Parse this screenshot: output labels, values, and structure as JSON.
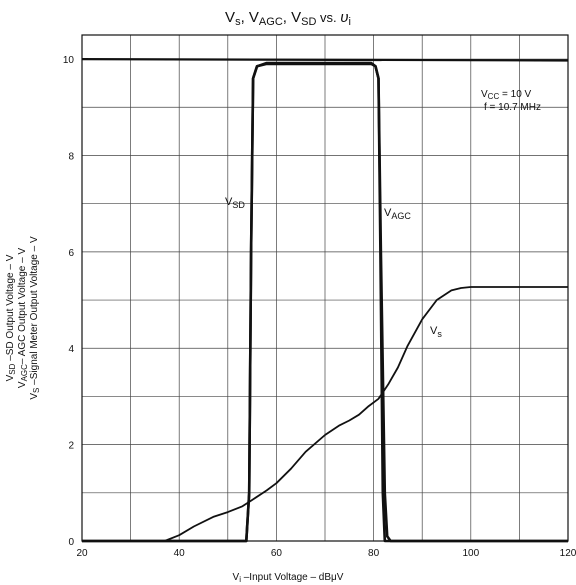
{
  "chart_data": {
    "type": "line",
    "title_parts": {
      "vs": "V",
      "vs_sub": "s",
      "sep1": ",  ",
      "vagc": "V",
      "vagc_sub": "AGC",
      "sep2": ",  ",
      "vsd": "V",
      "vsd_sub": "SD",
      "tail": "  vs. ",
      "vi": "υ",
      "vi_sub": "i"
    },
    "xlabel_parts": {
      "v": "V",
      "sub": "i",
      "rest": " –Input  Voltage – dBμV"
    },
    "ylabel_lines": [
      {
        "v": "V",
        "sub": "SD",
        "rest": " –SD  Output  Voltage – V"
      },
      {
        "v": "V",
        "sub": "AGC",
        "rest": "– AGC  Output  Voltage – V"
      },
      {
        "v": "V",
        "sub": "S",
        "rest": " –Signal  Meter  Output  Voltage – V"
      }
    ],
    "xlim": [
      20,
      120
    ],
    "ylim": [
      0,
      10.5
    ],
    "x_ticks": [
      20,
      40,
      60,
      80,
      100,
      120
    ],
    "y_ticks": [
      0,
      2,
      4,
      6,
      8,
      10
    ],
    "grid": true,
    "annotations": [
      {
        "v": "V",
        "sub": "CC",
        "rest": " = 10  V"
      },
      {
        "v": "",
        "sub": "",
        "rest": "f = 10.7  MHz"
      }
    ],
    "series": [
      {
        "name": "VCC",
        "x": [
          20,
          120
        ],
        "y": [
          10.0,
          9.97
        ]
      },
      {
        "name": "VSD",
        "label": {
          "v": "V",
          "sub": "SD"
        },
        "x": [
          20,
          53.8,
          54.4,
          54.8,
          55.2,
          56.0,
          58.0,
          79.5,
          80.4,
          81.0,
          81.4,
          81.9,
          82.3,
          120
        ],
        "y": [
          0,
          0,
          1.0,
          6.0,
          9.6,
          9.85,
          9.9,
          9.9,
          9.85,
          9.6,
          6.0,
          1.0,
          0,
          0
        ]
      },
      {
        "name": "VAGC",
        "label": {
          "v": "V",
          "sub": "AGC"
        },
        "x": [
          20,
          53.8,
          54.4,
          54.8,
          55.2,
          56.0,
          58.0,
          79.5,
          80.4,
          81.0,
          81.5,
          82.3,
          82.8,
          83.5,
          120
        ],
        "y": [
          0,
          0,
          1.0,
          6.0,
          9.6,
          9.85,
          9.92,
          9.92,
          9.85,
          9.6,
          6.0,
          1.0,
          0.1,
          0,
          0
        ]
      },
      {
        "name": "VS",
        "label": {
          "v": "V",
          "sub": "s"
        },
        "x": [
          20,
          37,
          40,
          43,
          47,
          50,
          53,
          55,
          58,
          60,
          63,
          66,
          70,
          73,
          75,
          77,
          79,
          81,
          83,
          85,
          87,
          90,
          93,
          96,
          98,
          100,
          120
        ],
        "y": [
          0,
          0,
          0.12,
          0.3,
          0.5,
          0.6,
          0.72,
          0.85,
          1.05,
          1.2,
          1.5,
          1.85,
          2.2,
          2.4,
          2.5,
          2.62,
          2.8,
          2.95,
          3.25,
          3.6,
          4.05,
          4.6,
          5.0,
          5.2,
          5.25,
          5.27,
          5.27
        ]
      }
    ]
  }
}
